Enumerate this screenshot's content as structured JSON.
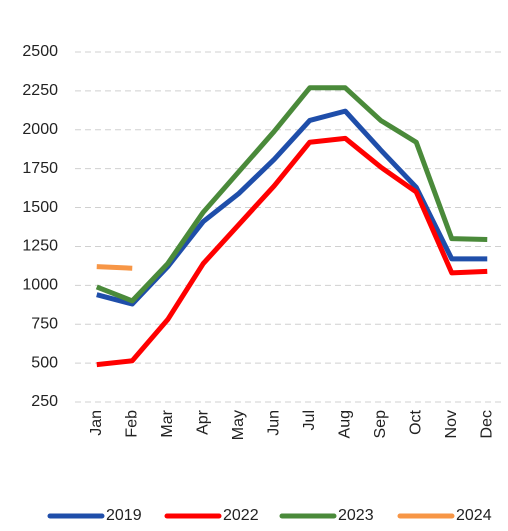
{
  "chart_data": {
    "type": "line",
    "categories": [
      "Jan",
      "Feb",
      "Mar",
      "Apr",
      "May",
      "Jun",
      "Jul",
      "Aug",
      "Sep",
      "Oct",
      "Nov",
      "Dec"
    ],
    "series": [
      {
        "name": "2019",
        "color": "#1f4eaa",
        "values": [
          940,
          880,
          1120,
          1410,
          1590,
          1810,
          2060,
          2120,
          1870,
          1630,
          1170,
          1170
        ]
      },
      {
        "name": "2022",
        "color": "#ff0000",
        "values": [
          490,
          515,
          780,
          1140,
          1390,
          1640,
          1920,
          1945,
          1760,
          1600,
          1080,
          1090
        ]
      },
      {
        "name": "2023",
        "color": "#4a8a3a",
        "values": [
          990,
          900,
          1140,
          1470,
          1730,
          1990,
          2270,
          2270,
          2060,
          1920,
          1300,
          1295
        ]
      },
      {
        "name": "2024",
        "color": "#f79646",
        "values": [
          1120,
          1110,
          null,
          null,
          null,
          null,
          null,
          null,
          null,
          null,
          null,
          null
        ]
      }
    ],
    "ylim": [
      250,
      2500
    ],
    "yticks": [
      250,
      500,
      750,
      1000,
      1250,
      1500,
      1750,
      2000,
      2250,
      2500
    ],
    "grid": true
  }
}
